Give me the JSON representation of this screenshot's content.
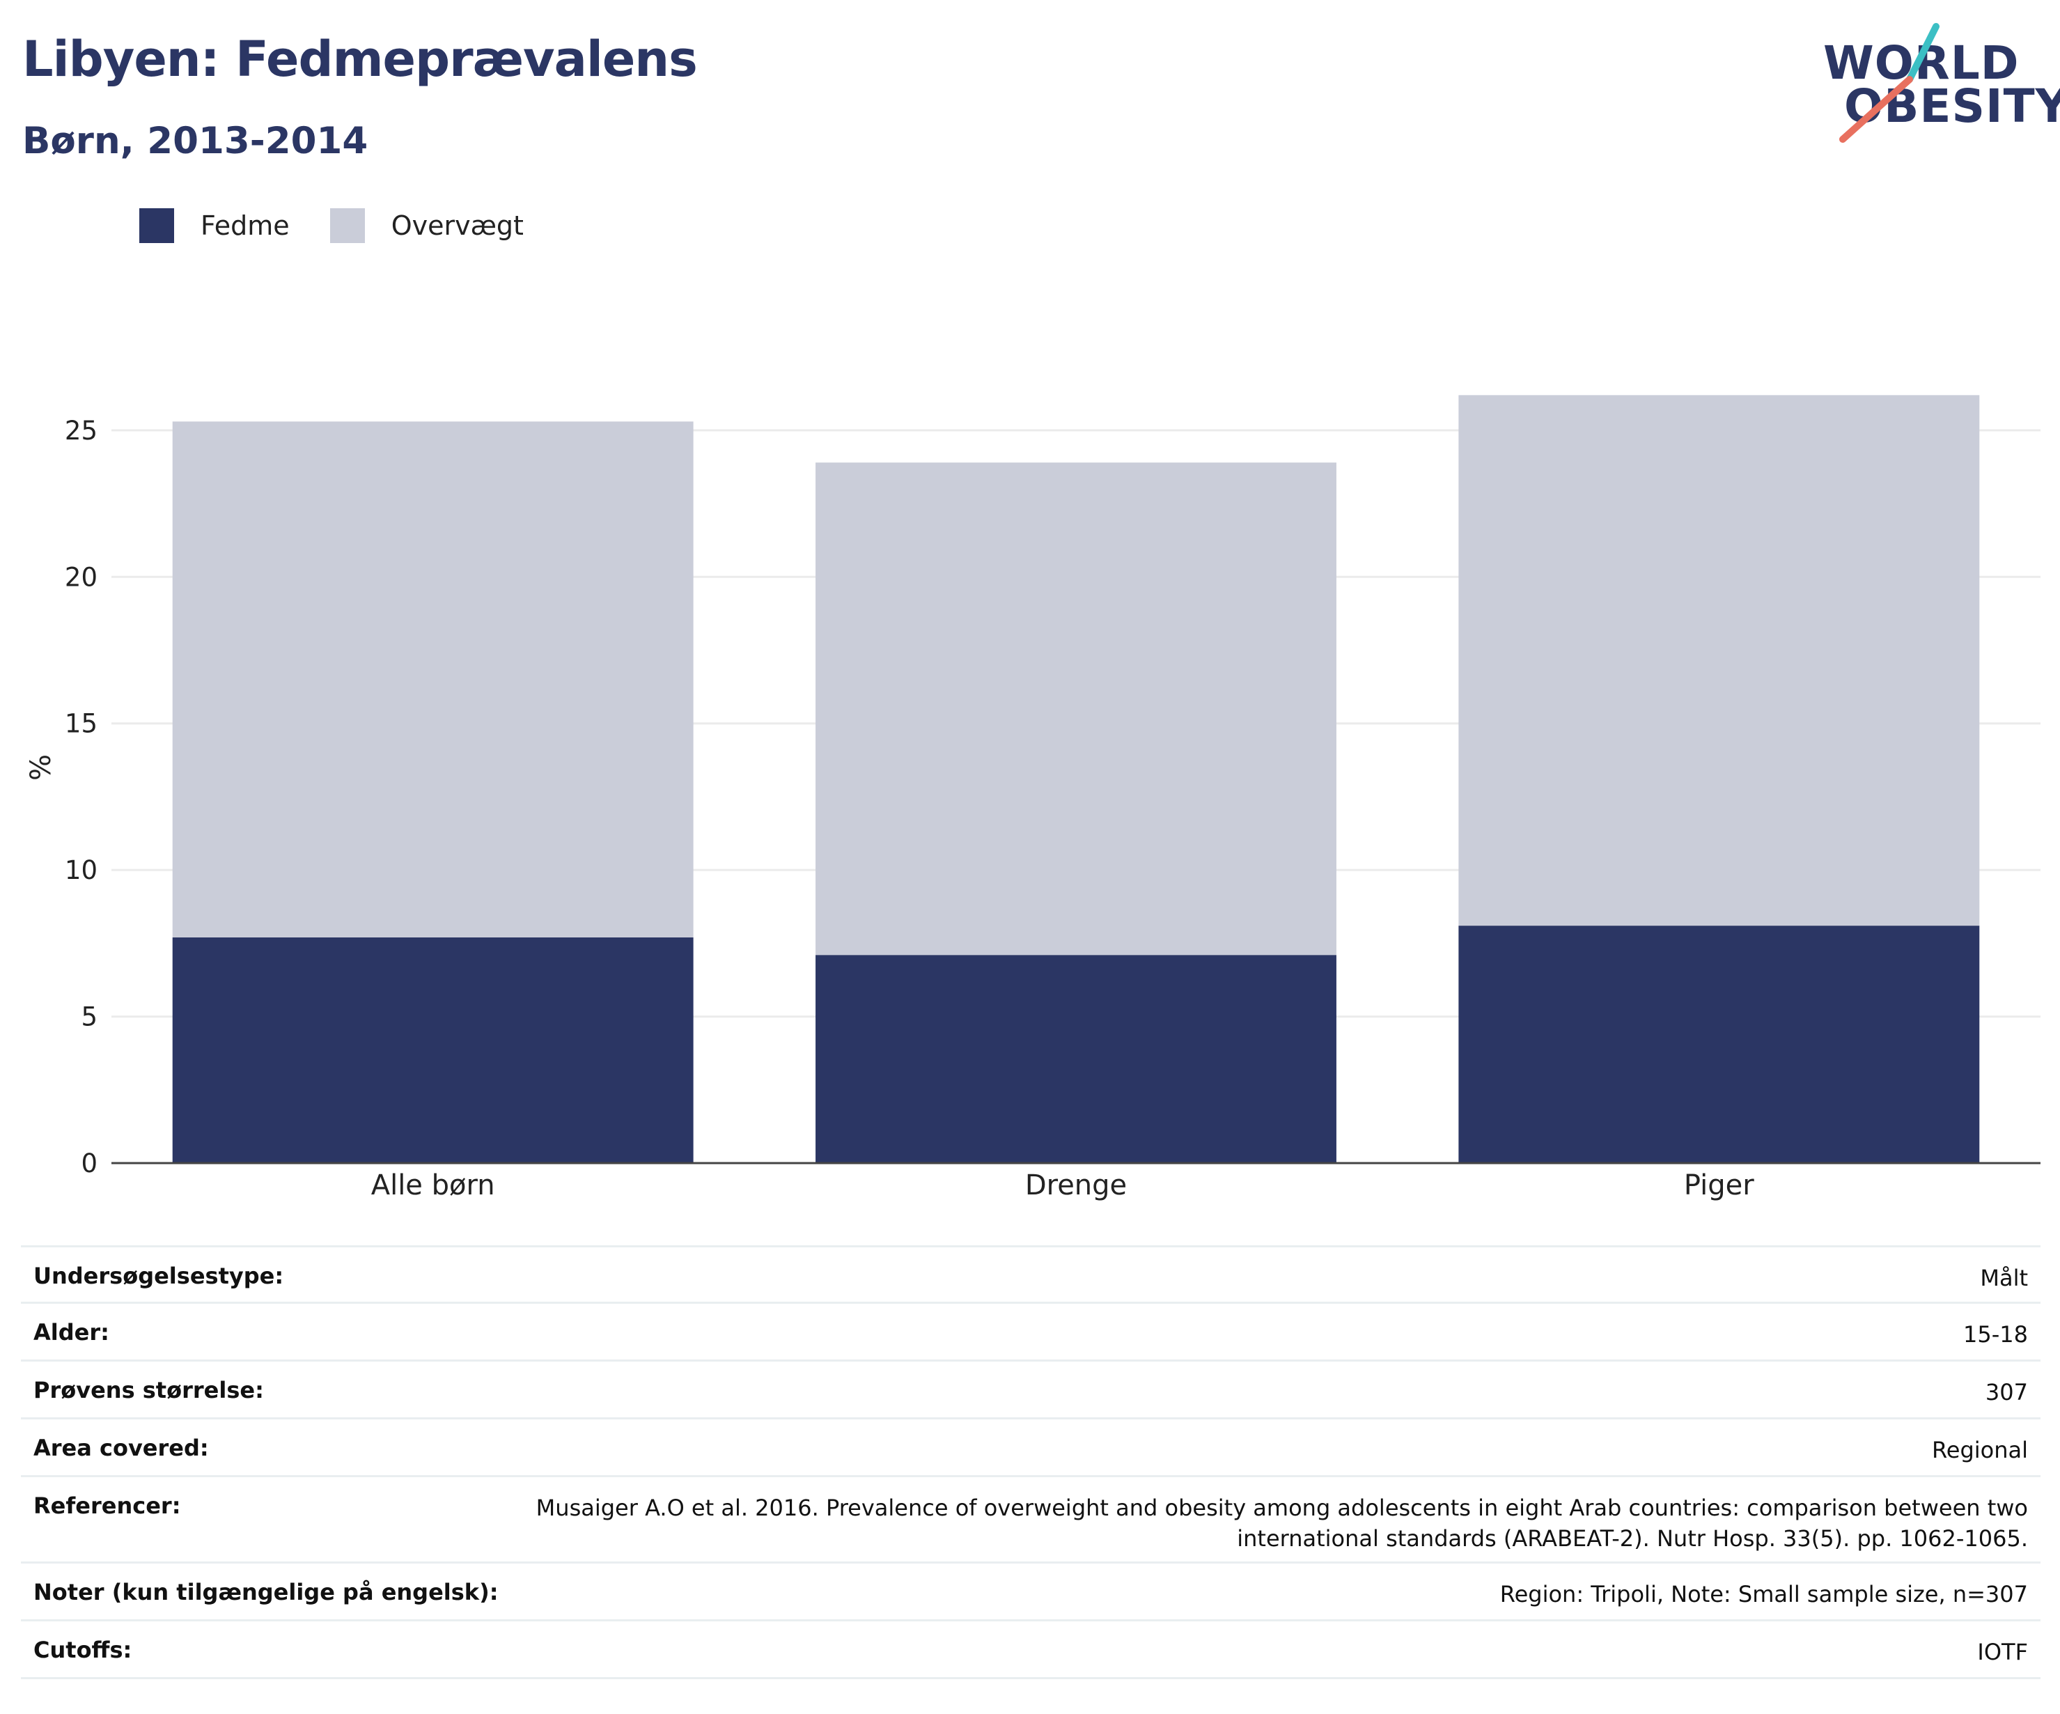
{
  "header": {
    "title": "Libyen: Fedmeprævalens",
    "subtitle": "Børn, 2013-2014"
  },
  "logo": {
    "line1": "WORLD",
    "line2": "OBESITY",
    "colors": {
      "text": "#2b3664",
      "slash_top": "#3cbfc4",
      "slash_bottom": "#e8705f"
    }
  },
  "legend": [
    {
      "label": "Fedme",
      "color": "#2b3664"
    },
    {
      "label": "Overvægt",
      "color": "#cacdd9"
    }
  ],
  "chart_data": {
    "type": "bar",
    "stacked": true,
    "categories": [
      "Alle børn",
      "Drenge",
      "Piger"
    ],
    "series": [
      {
        "name": "Fedme",
        "values": [
          7.7,
          7.1,
          8.1
        ],
        "color": "#2b3664"
      },
      {
        "name": "Overvægt",
        "values": [
          17.6,
          16.8,
          18.1
        ],
        "color": "#cacdd9"
      }
    ],
    "ylabel": "%",
    "ylim": [
      0,
      27.8
    ],
    "yticks": [
      0,
      5,
      10,
      15,
      20,
      25
    ],
    "grid": true,
    "legend_position": "top-left"
  },
  "info": [
    {
      "label": "Undersøgelsestype:",
      "value": [
        "Målt"
      ]
    },
    {
      "label": "Alder:",
      "value": [
        "15-18"
      ]
    },
    {
      "label": "Prøvens størrelse:",
      "value": [
        "307"
      ]
    },
    {
      "label": "Area covered:",
      "value": [
        "Regional"
      ]
    },
    {
      "label": "Referencer:",
      "value": [
        "Musaiger A.O et al. 2016. Prevalence of overweight and obesity among adolescents in eight Arab countries: comparison between two",
        "international standards (ARABEAT-2). Nutr Hosp. 33(5). pp. 1062-1065."
      ]
    },
    {
      "label": "Noter (kun tilgængelige på engelsk):",
      "value": [
        "Region: Tripoli, Note: Small sample size, n=307"
      ]
    },
    {
      "label": "Cutoffs:",
      "value": [
        "IOTF"
      ]
    }
  ]
}
